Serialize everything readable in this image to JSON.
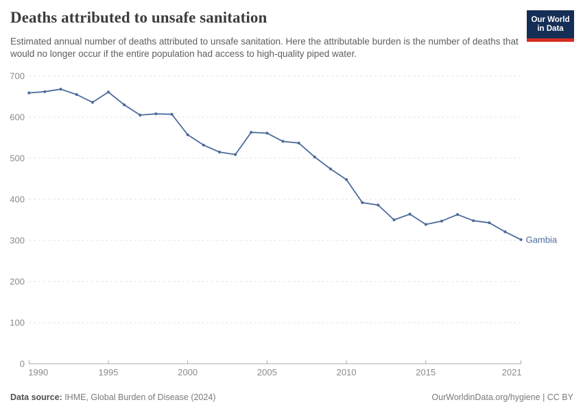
{
  "header": {
    "title": "Deaths attributed to unsafe sanitation",
    "subtitle": "Estimated annual number of deaths attributed to unsafe sanitation. Here the attributable burden is the number of deaths that would no longer occur if the entire population had access to high-quality piped water.",
    "logo": {
      "line1": "Our World",
      "line2": "in Data",
      "bg_color": "#152e55",
      "stripe_color": "#d42b21"
    }
  },
  "chart_data": {
    "type": "line",
    "title": "Deaths attributed to unsafe sanitation",
    "xlabel": "",
    "ylabel": "",
    "xlim": [
      1990,
      2021
    ],
    "ylim": [
      0,
      700
    ],
    "x_ticks": [
      1990,
      1995,
      2000,
      2005,
      2010,
      2015,
      2021
    ],
    "y_ticks": [
      0,
      100,
      200,
      300,
      400,
      500,
      600,
      700
    ],
    "grid": "horizontal-dashed",
    "legend_position": "end-of-line-label",
    "series": [
      {
        "name": "Gambia",
        "color": "#4C6A9C",
        "x": [
          1990,
          1991,
          1992,
          1993,
          1994,
          1995,
          1996,
          1997,
          1998,
          1999,
          2000,
          2001,
          2002,
          2003,
          2004,
          2005,
          2006,
          2007,
          2008,
          2009,
          2010,
          2011,
          2012,
          2013,
          2014,
          2015,
          2016,
          2017,
          2018,
          2019,
          2020,
          2021
        ],
        "values": [
          659,
          662,
          668,
          655,
          636,
          661,
          630,
          605,
          608,
          607,
          557,
          532,
          515,
          509,
          563,
          561,
          541,
          537,
          503,
          474,
          448,
          392,
          386,
          350,
          364,
          339,
          347,
          363,
          348,
          343,
          321,
          302
        ]
      }
    ],
    "colors": {
      "gridline": "#e0e0e0",
      "axis_line": "#a8a8a8",
      "tick_label": "#8a8a8a"
    }
  },
  "footer": {
    "source_label": "Data source:",
    "source_value": " IHME, Global Burden of Disease (2024)",
    "credit": "OurWorldinData.org/hygiene | CC BY"
  }
}
